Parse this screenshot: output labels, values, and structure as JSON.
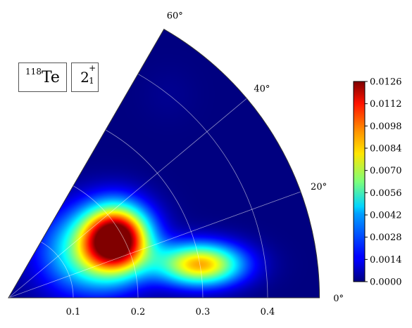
{
  "chart_data": {
    "type": "heatmap",
    "projection": "polar-sector",
    "colormap": "jet",
    "theta_range_deg": [
      0,
      60
    ],
    "r_range": [
      0,
      0.48
    ],
    "r_ticks": [
      0.1,
      0.2,
      0.3,
      0.4
    ],
    "r_tick_labels": [
      "0.1",
      "0.2",
      "0.3",
      "0.4"
    ],
    "theta_ticks_deg": [
      0,
      20,
      40,
      60
    ],
    "theta_tick_labels": [
      "0°",
      "20°",
      "40°",
      "60°"
    ],
    "grid": true,
    "hotspots": [
      {
        "beta": 0.19,
        "gamma_deg": 29,
        "value": 0.0126
      },
      {
        "beta": 0.3,
        "gamma_deg": 10,
        "value": 0.0089
      },
      {
        "beta": 0.14,
        "gamma_deg": 30,
        "value": 0.005
      }
    ],
    "colorbar": {
      "min": 0.0,
      "max": 0.0126,
      "ticks": [
        "0.0000",
        "0.0014",
        "0.0028",
        "0.0042",
        "0.0056",
        "0.0070",
        "0.0084",
        "0.0098",
        "0.0112",
        "0.0126"
      ]
    },
    "annotations": {
      "nucleus_mass": "118",
      "nucleus_symbol": "Te",
      "state_main": "2",
      "state_sup": "+",
      "state_sub": "1"
    }
  }
}
